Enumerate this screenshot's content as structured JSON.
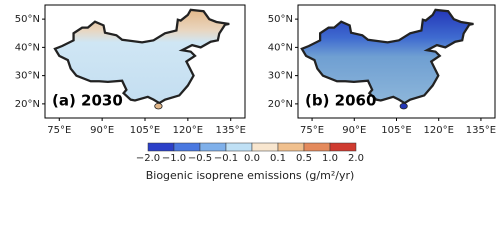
{
  "panels": [
    {
      "label": "(a) 2030",
      "lon_ticks": [
        "75°E",
        "90°E",
        "105°E",
        "120°E",
        "135°E"
      ],
      "lat_ticks": [
        "50°N",
        "40°N",
        "30°N",
        "20°N"
      ]
    },
    {
      "label": "(b) 2060",
      "lon_ticks": [
        "75°E",
        "90°E",
        "105°E",
        "120°E",
        "135°E"
      ],
      "lat_ticks": [
        "50°N",
        "40°N",
        "30°N",
        "20°N"
      ]
    }
  ],
  "colorbar": {
    "ticks": [
      "−2.0",
      "−1.0",
      "−0.5",
      "−0.1",
      "0.0",
      "0.1",
      "0.5",
      "1.0",
      "2.0"
    ],
    "colors": [
      "#2b3fc8",
      "#4a78e0",
      "#7fb0ea",
      "#bfe0f5",
      "#f8e6cf",
      "#f0c08e",
      "#e48a5c",
      "#cf3b30"
    ],
    "label": "Biogenic isoprene emissions (g/m²/yr)"
  }
}
